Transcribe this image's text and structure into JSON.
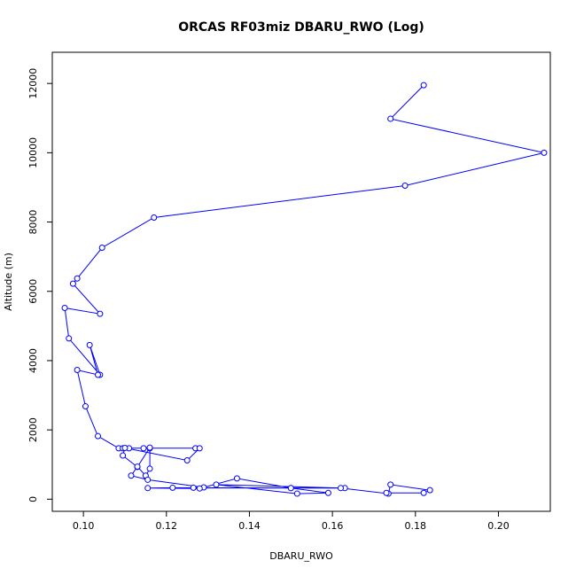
{
  "chart_data": {
    "type": "line",
    "title": "ORCAS RF03miz DBARU_RWO (Log)",
    "xlabel": "DBARU_RWO",
    "ylabel": "Altitude (m)",
    "xlim": [
      0.0925,
      0.2125
    ],
    "ylim": [
      -350,
      12900
    ],
    "xticks": [
      0.1,
      0.12,
      0.14,
      0.16,
      0.18,
      0.2
    ],
    "xtick_labels": [
      "0.10",
      "0.12",
      "0.14",
      "0.16",
      "0.18",
      "0.20"
    ],
    "yticks": [
      0,
      2000,
      4000,
      6000,
      8000,
      10000,
      12000
    ],
    "ytick_labels": [
      "0",
      "2000",
      "4000",
      "6000",
      "8000",
      "10000",
      "12000"
    ],
    "grid": false,
    "legend": false,
    "series": [
      {
        "color": "#0000ff",
        "marker": "open-circle",
        "x": [
          0.182,
          0.174,
          0.211,
          0.1775,
          0.117,
          0.1045,
          0.0985,
          0.0975,
          0.104,
          0.0955,
          0.0965,
          0.104,
          0.1015,
          0.1035,
          0.0985,
          0.1005,
          0.1035,
          0.1085,
          0.1095,
          0.111,
          0.1145,
          0.116,
          0.127,
          0.128,
          0.125,
          0.11,
          0.1095,
          0.113,
          0.116,
          0.116,
          0.115,
          0.113,
          0.1115,
          0.1155,
          0.129,
          0.137,
          0.15,
          0.159,
          0.1515,
          0.132,
          0.163,
          0.1265,
          0.128,
          0.1155,
          0.1215,
          0.15,
          0.162,
          0.1735,
          0.174,
          0.1835,
          0.182,
          0.173
        ],
        "y": [
          11950,
          10980,
          10000,
          9050,
          8130,
          7260,
          6370,
          6220,
          5350,
          5520,
          4640,
          3590,
          4450,
          3590,
          3730,
          2680,
          1820,
          1470,
          1470,
          1470,
          1470,
          1470,
          1470,
          1470,
          1120,
          1480,
          1260,
          930,
          1490,
          880,
          680,
          940,
          680,
          560,
          340,
          600,
          320,
          180,
          160,
          420,
          320,
          330,
          310,
          320,
          330,
          320,
          320,
          160,
          420,
          260,
          180,
          180
        ]
      }
    ]
  }
}
